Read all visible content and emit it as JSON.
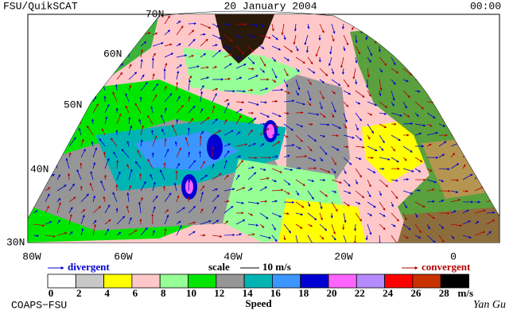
{
  "header": {
    "left": "FSU/QuikSCAT",
    "center": "20 January 2004",
    "right": "00:00"
  },
  "lat_labels": [
    "70N",
    "60N",
    "50N",
    "40N",
    "30N"
  ],
  "lon_labels": [
    "80W",
    "60W",
    "40W",
    "20W",
    "0"
  ],
  "legend": {
    "divergent": "divergent",
    "scale": "scale",
    "scale_value": "10 m/s",
    "convergent": "convergent"
  },
  "colorbar": {
    "ticks": [
      0,
      2,
      4,
      6,
      8,
      10,
      12,
      14,
      16,
      18,
      20,
      22,
      24,
      26,
      28
    ],
    "unit": "m/s",
    "label": "Speed",
    "colors": [
      "#ffffff",
      "#c8c8c8",
      "#ffff00",
      "#ffc8c8",
      "#96ff96",
      "#00e600",
      "#969696",
      "#00b4b4",
      "#3c96ff",
      "#0000d2",
      "#ff64ff",
      "#b48cff",
      "#ff0000",
      "#c83200",
      "#000000"
    ]
  },
  "footer": {
    "org": "COAPS−FSU",
    "author": "Yan Gu"
  }
}
